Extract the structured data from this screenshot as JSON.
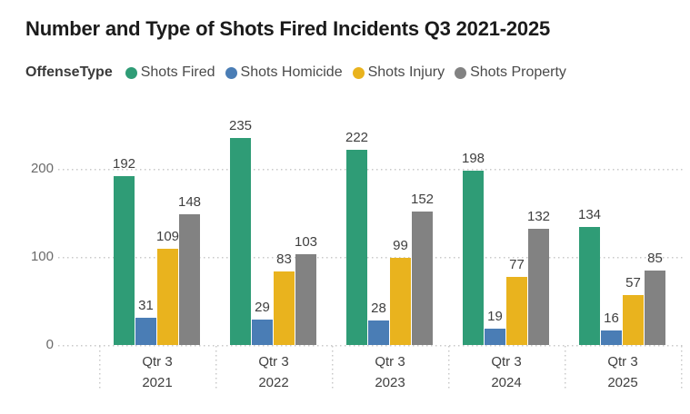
{
  "title": "Number and Type of Shots Fired Incidents Q3 2021-2025",
  "legend": {
    "title": "OffenseType",
    "items": [
      {
        "label": "Shots Fired",
        "color": "#2f9c76",
        "icon": "circle-icon"
      },
      {
        "label": "Shots Homicide",
        "color": "#4a7db5",
        "icon": "circle-icon"
      },
      {
        "label": "Shots Injury",
        "color": "#e9b31e",
        "icon": "circle-icon"
      },
      {
        "label": "Shots Property",
        "color": "#828282",
        "icon": "circle-icon"
      }
    ]
  },
  "chart_data": {
    "type": "bar",
    "title": "Number and Type of Shots Fired Incidents Q3 2021-2025",
    "legend_title": "OffenseType",
    "legend_position": "top",
    "grid": "horizontal-dotted",
    "data_labels": true,
    "categories": [
      {
        "quarter": "Qtr 3",
        "year": "2021"
      },
      {
        "quarter": "Qtr 3",
        "year": "2022"
      },
      {
        "quarter": "Qtr 3",
        "year": "2023"
      },
      {
        "quarter": "Qtr 3",
        "year": "2024"
      },
      {
        "quarter": "Qtr 3",
        "year": "2025"
      }
    ],
    "series": [
      {
        "name": "Shots Fired",
        "color": "#2f9c76",
        "values": [
          192,
          235,
          222,
          198,
          134
        ]
      },
      {
        "name": "Shots Homicide",
        "color": "#4a7db5",
        "values": [
          31,
          29,
          28,
          19,
          16
        ]
      },
      {
        "name": "Shots Injury",
        "color": "#e9b31e",
        "values": [
          109,
          83,
          99,
          77,
          57
        ]
      },
      {
        "name": "Shots Property",
        "color": "#828282",
        "values": [
          148,
          103,
          152,
          132,
          85
        ]
      }
    ],
    "y_axis": {
      "ticks": [
        0,
        100,
        200
      ],
      "range": [
        0,
        250
      ]
    }
  }
}
